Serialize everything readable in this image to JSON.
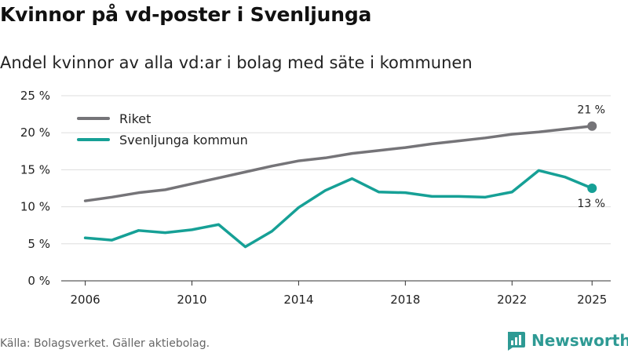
{
  "title": "Kvinnor på vd-poster i Svenljunga",
  "subtitle": "Andel kvinnor av alla vd:ar i bolag med säte i kommunen",
  "source": "Källa: Bolagsverket. Gäller aktiebolag.",
  "brand": "Newsworthy",
  "colors": {
    "riket": "#757478",
    "kommun": "#16a096",
    "grid": "#dddddd",
    "brand": "#2e9a94"
  },
  "chart_data": {
    "type": "line",
    "title": "Kvinnor på vd-poster i Svenljunga",
    "xlabel": "",
    "ylabel": "",
    "ylim": [
      0,
      25
    ],
    "yticks": [
      0,
      5,
      10,
      15,
      20,
      25
    ],
    "ytick_labels": [
      "0 %",
      "5 %",
      "10 %",
      "15 %",
      "20 %",
      "25 %"
    ],
    "xticks": [
      2006,
      2010,
      2014,
      2018,
      2022,
      2025
    ],
    "xtick_labels": [
      "2006",
      "2010",
      "2014",
      "2018",
      "2022",
      "2025"
    ],
    "x": [
      2006,
      2007,
      2008,
      2009,
      2010,
      2011,
      2012,
      2013,
      2014,
      2015,
      2016,
      2017,
      2018,
      2019,
      2020,
      2021,
      2022,
      2023,
      2024,
      2025
    ],
    "legend_position": "top-left",
    "series": [
      {
        "name": "Riket",
        "color_key": "riket",
        "values": [
          10.8,
          11.3,
          11.9,
          12.3,
          13.1,
          13.9,
          14.7,
          15.5,
          16.2,
          16.6,
          17.2,
          17.6,
          18.0,
          18.5,
          18.9,
          19.3,
          19.8,
          20.1,
          20.5,
          20.9
        ],
        "end_label": "21 %"
      },
      {
        "name": "Svenljunga kommun",
        "color_key": "kommun",
        "values": [
          5.8,
          5.5,
          6.8,
          6.5,
          6.9,
          7.6,
          4.6,
          6.7,
          9.9,
          12.2,
          13.8,
          12.0,
          11.9,
          11.4,
          11.4,
          11.3,
          12.0,
          14.9,
          14.0,
          12.5
        ],
        "end_label": "13 %"
      }
    ]
  }
}
